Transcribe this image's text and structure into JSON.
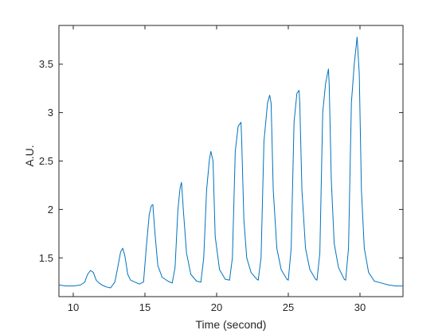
{
  "chart_data": {
    "type": "line",
    "title": "",
    "xlabel": "Time (second)",
    "ylabel": "A.U.",
    "xlim": [
      9,
      33
    ],
    "ylim": [
      1.1,
      3.9
    ],
    "xticks": [
      {
        "value": 10,
        "label": "10"
      },
      {
        "value": 15,
        "label": "15"
      },
      {
        "value": 20,
        "label": "20"
      },
      {
        "value": 25,
        "label": "25"
      },
      {
        "value": 30,
        "label": "30"
      }
    ],
    "yticks": [
      {
        "value": 1.5,
        "label": "1.5"
      },
      {
        "value": 2.0,
        "label": "2"
      },
      {
        "value": 2.5,
        "label": "2.5"
      },
      {
        "value": 3.0,
        "label": "3"
      },
      {
        "value": 3.5,
        "label": "3.5"
      }
    ],
    "grid": false,
    "legend": false,
    "series": [
      {
        "color": "#0072BD",
        "x": [
          9.0,
          9.5,
          10.0,
          10.5,
          10.8,
          11.0,
          11.2,
          11.4,
          11.6,
          11.8,
          12.0,
          12.3,
          12.6,
          12.9,
          13.1,
          13.3,
          13.45,
          13.6,
          13.8,
          14.0,
          14.3,
          14.6,
          14.9,
          15.1,
          15.3,
          15.45,
          15.55,
          15.7,
          15.9,
          16.2,
          16.6,
          16.9,
          17.1,
          17.3,
          17.45,
          17.55,
          17.7,
          17.9,
          18.2,
          18.6,
          18.9,
          19.1,
          19.3,
          19.5,
          19.6,
          19.75,
          19.9,
          20.2,
          20.6,
          20.9,
          21.1,
          21.3,
          21.5,
          21.7,
          21.75,
          21.9,
          22.1,
          22.4,
          22.8,
          22.9,
          23.1,
          23.3,
          23.55,
          23.7,
          23.8,
          23.95,
          24.2,
          24.5,
          24.9,
          25.0,
          25.2,
          25.4,
          25.6,
          25.75,
          25.8,
          25.95,
          26.2,
          26.5,
          26.9,
          27.0,
          27.2,
          27.4,
          27.6,
          27.8,
          27.85,
          28.0,
          28.2,
          28.5,
          28.9,
          29.0,
          29.2,
          29.4,
          29.6,
          29.8,
          29.95,
          30.1,
          30.3,
          30.6,
          31.0,
          31.5,
          32.0,
          32.5,
          33.0
        ],
        "y": [
          1.22,
          1.21,
          1.21,
          1.22,
          1.25,
          1.33,
          1.37,
          1.35,
          1.27,
          1.24,
          1.22,
          1.2,
          1.19,
          1.25,
          1.4,
          1.56,
          1.6,
          1.52,
          1.33,
          1.27,
          1.25,
          1.23,
          1.25,
          1.62,
          1.95,
          2.04,
          2.05,
          1.75,
          1.42,
          1.3,
          1.26,
          1.24,
          1.4,
          2.0,
          2.22,
          2.28,
          1.95,
          1.55,
          1.33,
          1.26,
          1.25,
          1.5,
          2.2,
          2.52,
          2.6,
          2.5,
          1.72,
          1.38,
          1.28,
          1.27,
          1.5,
          2.6,
          2.86,
          2.9,
          2.7,
          1.9,
          1.5,
          1.35,
          1.28,
          1.27,
          1.5,
          2.7,
          3.1,
          3.18,
          3.1,
          2.2,
          1.6,
          1.38,
          1.28,
          1.27,
          1.6,
          2.9,
          3.2,
          3.23,
          3.1,
          2.2,
          1.6,
          1.38,
          1.28,
          1.27,
          1.55,
          3.0,
          3.3,
          3.45,
          3.3,
          2.3,
          1.65,
          1.4,
          1.28,
          1.27,
          1.6,
          3.1,
          3.5,
          3.78,
          3.4,
          2.2,
          1.6,
          1.35,
          1.26,
          1.24,
          1.22,
          1.21,
          1.21
        ]
      }
    ]
  }
}
